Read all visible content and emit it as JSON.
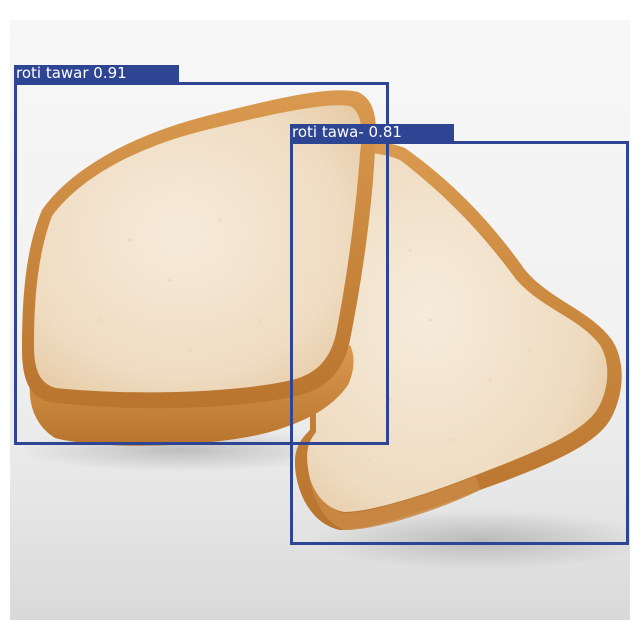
{
  "detections": [
    {
      "label": "roti tawar 0.91",
      "class": "roti tawar",
      "confidence": 0.91
    },
    {
      "label": "roti tawa- 0.81",
      "class": "roti tawar",
      "confidence": 0.81
    }
  ],
  "colors": {
    "box": "#2e4593",
    "label_text": "#ffffff",
    "crust": "#d08a3c",
    "crumb": "#f3e6d2"
  }
}
